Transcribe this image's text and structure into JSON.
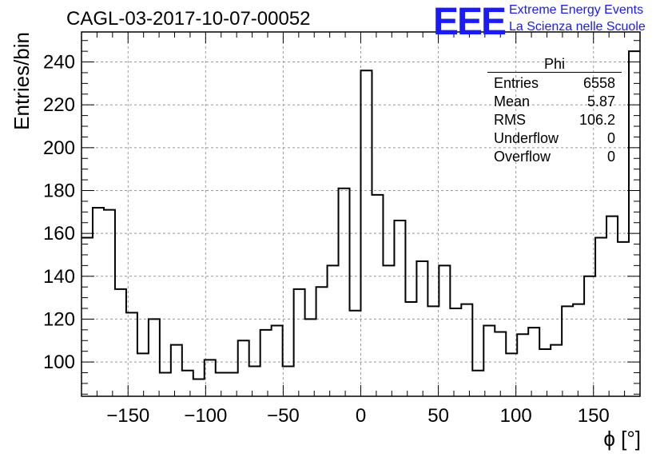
{
  "chart_data": {
    "type": "bar",
    "title": "CAGL-03-2017-10-07-00052",
    "xlabel": "ϕ [°]",
    "ylabel": "Entries/bin",
    "xlim": [
      -180,
      180
    ],
    "ylim": [
      84,
      254
    ],
    "bin_width": 7.2,
    "x_ticks": [
      -150,
      -100,
      -50,
      0,
      50,
      100,
      150
    ],
    "y_ticks": [
      100,
      120,
      140,
      160,
      180,
      200,
      220,
      240
    ],
    "grid": true,
    "values": [
      158,
      172,
      171,
      134,
      123,
      104,
      120,
      95,
      108,
      96,
      92,
      101,
      95,
      95,
      110,
      98,
      115,
      117,
      98,
      134,
      120,
      135,
      145,
      181,
      124,
      236,
      178,
      145,
      166,
      128,
      147,
      126,
      145,
      125,
      127,
      96,
      117,
      114,
      104,
      113,
      116,
      106,
      108,
      126,
      127,
      140,
      158,
      168,
      156,
      245
    ]
  },
  "stats_box": {
    "name": "Phi",
    "rows": [
      {
        "label": "Entries",
        "value": "6558"
      },
      {
        "label": "Mean",
        "value": "5.87"
      },
      {
        "label": "RMS",
        "value": "106.2"
      },
      {
        "label": "Underflow",
        "value": "0"
      },
      {
        "label": "Overflow",
        "value": "0"
      }
    ]
  },
  "branding": {
    "logo": "EEE",
    "line1": "Extreme Energy Events",
    "line2": "La Scienza nelle Scuole",
    "color": "#1a1aff"
  }
}
